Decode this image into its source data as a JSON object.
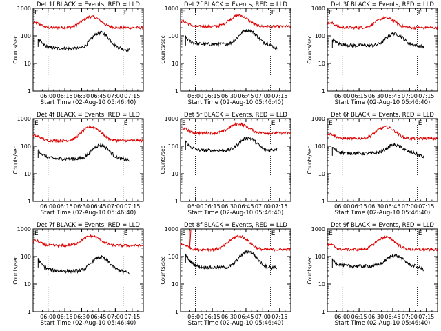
{
  "colors": {
    "events": "#000000",
    "lld": "#dd0000",
    "axis": "#000000",
    "guide": "#000000"
  },
  "chart_data": {
    "type": "line",
    "ylabel": "Counts/sec",
    "xlabel": "Start Time (02-Aug-10 05:46:40)",
    "x_ticks": [
      "06:00",
      "06:15",
      "06:30",
      "06:45",
      "07:00",
      "07:15"
    ],
    "x_tick_minutes": [
      13.33,
      28.33,
      43.33,
      58.33,
      73.33,
      88.33
    ],
    "xlim_minutes": [
      0,
      98.3
    ],
    "y_scale": "log",
    "ylim": [
      1,
      1000
    ],
    "y_ticks": [
      "1",
      "10",
      "100",
      "1000"
    ],
    "vertical_markers_minutes": [
      13.3,
      80.3
    ],
    "corner_marks": {
      "left": "E",
      "right": "E"
    },
    "panels": [
      {
        "title": "Det 1f BLACK = Events, RED = LLD",
        "red": [
          200,
          500
        ],
        "black": [
          80,
          35,
          130,
          30
        ],
        "spike": false
      },
      {
        "title": "Det 2f BLACK = Events, RED = LLD",
        "red": [
          220,
          550
        ],
        "black": [
          90,
          50,
          160,
          35
        ],
        "spike": false
      },
      {
        "title": "Det 3f BLACK = Events, RED = LLD",
        "red": [
          200,
          450
        ],
        "black": [
          75,
          45,
          120,
          40
        ],
        "spike": false
      },
      {
        "title": "Det 4f BLACK = Events, RED = LLD",
        "red": [
          160,
          500
        ],
        "black": [
          75,
          35,
          110,
          30
        ],
        "spike": false
      },
      {
        "title": "Det 5f BLACK = Events, RED = LLD",
        "red": [
          300,
          650
        ],
        "black": [
          150,
          70,
          200,
          80
        ],
        "spike": false
      },
      {
        "title": "Det 6f BLACK = Events, RED = LLD",
        "red": [
          190,
          500
        ],
        "black": [
          90,
          55,
          110,
          40
        ],
        "spike": false
      },
      {
        "title": "Det 7f BLACK = Events, RED = LLD",
        "red": [
          250,
          550
        ],
        "black": [
          80,
          30,
          95,
          25
        ],
        "spike": false
      },
      {
        "title": "Det 8f BLACK = Events, RED = LLD",
        "red": [
          180,
          550
        ],
        "black": [
          120,
          40,
          150,
          40
        ],
        "spike": true
      },
      {
        "title": "Det 9f BLACK = Events, RED = LLD",
        "red": [
          180,
          500
        ],
        "black": [
          75,
          45,
          110,
          35
        ],
        "spike": false
      }
    ]
  }
}
